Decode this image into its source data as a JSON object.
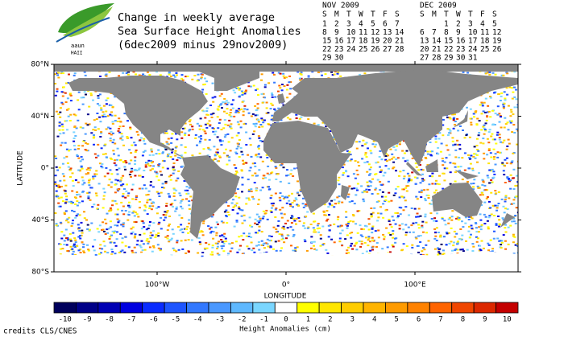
{
  "header": {
    "title_lines": [
      "Change in weekly average",
      "Sea Surface Height Anomalies",
      "(6dec2009 minus 29nov2009)"
    ],
    "logo_text": [
      "aaun",
      "HAII"
    ]
  },
  "calendars": [
    {
      "month": "NOV 2009",
      "weekdays": [
        "S",
        "M",
        "T",
        "W",
        "T",
        "F",
        "S"
      ],
      "weeks": [
        [
          1,
          2,
          3,
          4,
          5,
          6,
          7
        ],
        [
          8,
          9,
          10,
          11,
          12,
          13,
          14
        ],
        [
          15,
          16,
          17,
          18,
          19,
          20,
          21
        ],
        [
          22,
          23,
          24,
          25,
          26,
          27,
          28
        ],
        [
          29,
          30,
          null,
          null,
          null,
          null,
          null
        ]
      ]
    },
    {
      "month": "DEC 2009",
      "weekdays": [
        "S",
        "M",
        "T",
        "W",
        "T",
        "F",
        "S"
      ],
      "weeks": [
        [
          null,
          null,
          1,
          2,
          3,
          4,
          5
        ],
        [
          6,
          7,
          8,
          9,
          10,
          11,
          12
        ],
        [
          13,
          14,
          15,
          16,
          17,
          18,
          19
        ],
        [
          20,
          21,
          22,
          23,
          24,
          25,
          26
        ],
        [
          27,
          28,
          29,
          30,
          31,
          null,
          null
        ]
      ]
    }
  ],
  "map": {
    "y_axis_label": "LATITUDE",
    "x_axis_label": "LONGITUDE",
    "xlim": [
      -180,
      180
    ],
    "ylim": [
      -80,
      80
    ],
    "xticks": [
      {
        "value": -100,
        "label": "100°W"
      },
      {
        "value": 0,
        "label": "0°"
      },
      {
        "value": 100,
        "label": "100°E"
      }
    ],
    "yticks": [
      {
        "value": 80,
        "label": "80°N"
      },
      {
        "value": 40,
        "label": "40°N"
      },
      {
        "value": 0,
        "label": "0°"
      },
      {
        "value": -40,
        "label": "40°S"
      },
      {
        "value": -80,
        "label": "80°S"
      }
    ]
  },
  "colorbar": {
    "label": "Height Anomalies (cm)",
    "ticks": [
      -10,
      -9,
      -8,
      -7,
      -6,
      -5,
      -4,
      -3,
      -2,
      -1,
      0,
      1,
      2,
      3,
      4,
      5,
      6,
      7,
      8,
      9,
      10
    ],
    "colors": [
      "#00005c",
      "#000088",
      "#0000b4",
      "#0000e0",
      "#0a2cff",
      "#1e55ff",
      "#3278ff",
      "#4a98ff",
      "#5eb8ff",
      "#7ad6ff",
      "#ffffff",
      "#ffff00",
      "#ffe600",
      "#ffcd00",
      "#ffb400",
      "#ff9b00",
      "#ff8200",
      "#ff6400",
      "#f04600",
      "#dc2800",
      "#c40000"
    ]
  },
  "footer": {
    "credits": "credits CLS/CNES"
  }
}
